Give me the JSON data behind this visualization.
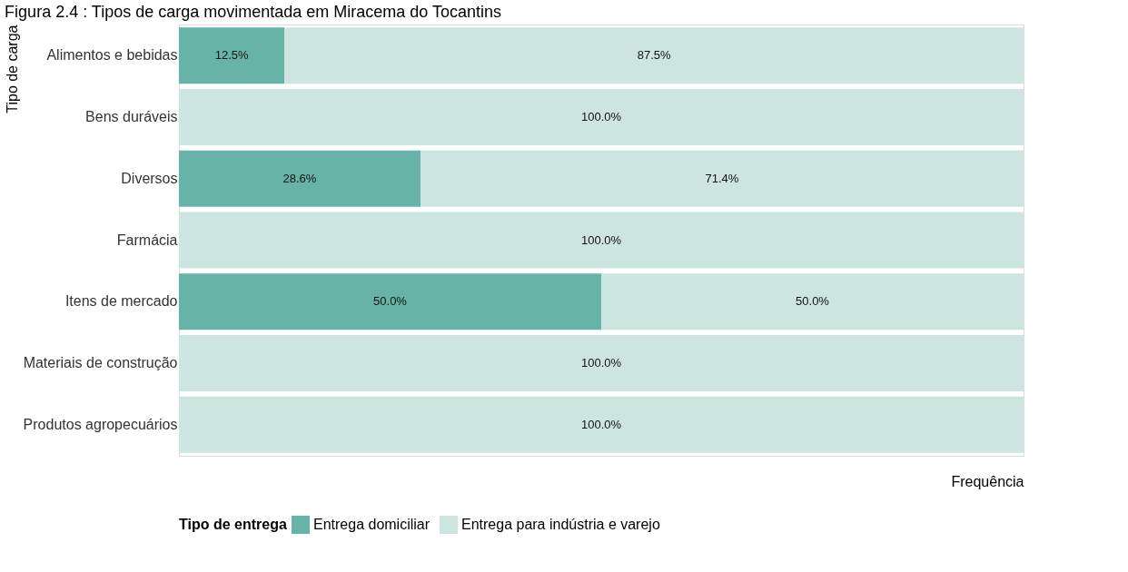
{
  "chart_data": {
    "type": "bar",
    "orientation": "horizontal",
    "stacked": true,
    "title": "Figura 2.4 : Tipos de carga movimentada em Miracema do Tocantins",
    "xlabel": "Frequência",
    "ylabel": "Tipo de carga",
    "legend_title": "Tipo de entrega",
    "categories": [
      "Alimentos e bebidas",
      "Bens duráveis",
      "Diversos",
      "Farmácia",
      "Itens de mercado",
      "Materiais de construção",
      "Produtos agropecuários"
    ],
    "xlim": [
      0,
      100
    ],
    "tick_labels": "y",
    "legend": "bottom",
    "series": [
      {
        "name": "Entrega domiciliar",
        "color": "#67b3a8",
        "values": [
          12.5,
          0,
          28.6,
          0,
          50.0,
          0,
          0
        ],
        "value_labels": [
          "12.5%",
          null,
          "28.6%",
          null,
          "50.0%",
          null,
          null
        ]
      },
      {
        "name": "Entrega para indústria e varejo",
        "color": "#cce5e1",
        "values": [
          87.5,
          100.0,
          71.4,
          100.0,
          50.0,
          100.0,
          100.0
        ],
        "value_labels": [
          "87.5%",
          "100.0%",
          "71.4%",
          "100.0%",
          "50.0%",
          "100.0%",
          "100.0%"
        ]
      }
    ]
  }
}
